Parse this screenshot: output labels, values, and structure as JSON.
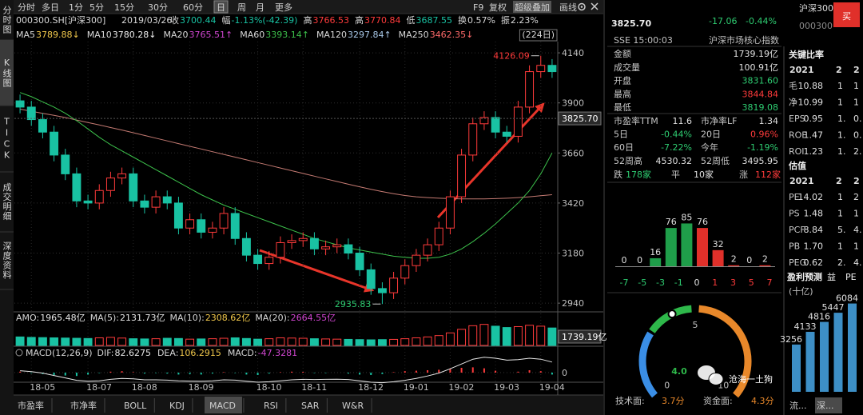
{
  "sidebar": [
    "分时图",
    "K线图",
    "TICK",
    "成交明细",
    "深度资料"
  ],
  "active_sidebar": 1,
  "periods": [
    "分时",
    "多日",
    "1分",
    "5分",
    "15分",
    "30分",
    "60分",
    "日",
    "周",
    "月",
    "更多"
  ],
  "active_period": 7,
  "tools": [
    "F9",
    "复权",
    "超级叠加",
    "画线"
  ],
  "active_tool": 2,
  "quote": {
    "code": "000300.SH[沪深300]",
    "date": "2019/03/26",
    "items": [
      {
        "label": "收",
        "value": "3700.44",
        "color": "#19c2a3"
      },
      {
        "label": "幅",
        "value": "-1.13%(-42.39)",
        "color": "#19c2a3"
      },
      {
        "label": "高",
        "value": "3766.53",
        "color": "#ff3b3b"
      },
      {
        "label": "高",
        "value": "3770.84",
        "color": "#ff3b3b"
      },
      {
        "label": "低",
        "value": "3687.55",
        "color": "#19c2a3"
      },
      {
        "label": "换",
        "value": "0.57%",
        "color": "#d8d8d8"
      },
      {
        "label": "振",
        "value": "2.23%",
        "color": "#d8d8d8"
      }
    ]
  },
  "ma_legend": [
    {
      "label": "MA5",
      "value": "3789.88↓",
      "color": "#f2c94c"
    },
    {
      "label": "MA10",
      "value": "3780.28↓",
      "color": "#f0f0f0"
    },
    {
      "label": "MA20",
      "value": "3765.51↑",
      "color": "#d046d0"
    },
    {
      "label": "MA60",
      "value": "3393.14↑",
      "color": "#3cc04b"
    },
    {
      "label": "MA120",
      "value": "3297.84↑",
      "color": "#a8c8e8"
    },
    {
      "label": "MA250",
      "value": "3462.35↓",
      "color": "#ff6a6a"
    }
  ],
  "period_count": "(224日)",
  "price_chart": {
    "type": "candlestick",
    "categories": [
      null,
      "18-05",
      null,
      null,
      null,
      null,
      "18-07",
      null,
      null,
      null,
      "18-08",
      null,
      null,
      null,
      null,
      "18-09",
      null,
      null,
      null,
      null,
      null,
      "18-10",
      null,
      null,
      null,
      "18-11",
      null,
      null,
      null,
      null,
      "18-12",
      null,
      null,
      null,
      "19-01",
      null,
      null,
      null,
      "19-02",
      null,
      null,
      null,
      "19-03",
      null,
      null,
      null,
      "19-04",
      null
    ],
    "open": [
      3910,
      3880,
      3820,
      3760,
      3650,
      3560,
      3430,
      3420,
      3480,
      3540,
      3560,
      3430,
      3400,
      3450,
      3420,
      3300,
      3340,
      3280,
      3300,
      3370,
      3250,
      3170,
      3130,
      3160,
      3230,
      3240,
      3250,
      3200,
      3210,
      3220,
      3180,
      3100,
      3010,
      2990,
      3060,
      3120,
      3170,
      3220,
      3300,
      3450,
      3650,
      3800,
      3830,
      3760,
      3740,
      3880,
      4050,
      4080
    ],
    "high": [
      3940,
      3910,
      3850,
      3790,
      3680,
      3590,
      3460,
      3510,
      3570,
      3590,
      3590,
      3460,
      3480,
      3480,
      3450,
      3370,
      3370,
      3330,
      3400,
      3400,
      3280,
      3200,
      3190,
      3260,
      3270,
      3280,
      3280,
      3240,
      3250,
      3250,
      3210,
      3130,
      3040,
      3090,
      3150,
      3200,
      3250,
      3330,
      3480,
      3680,
      3830,
      3860,
      3860,
      3790,
      3910,
      4080,
      4126.09,
      4110
    ],
    "low": [
      3850,
      3790,
      3730,
      3620,
      3530,
      3400,
      3390,
      3390,
      3450,
      3510,
      3400,
      3370,
      3370,
      3390,
      3270,
      3270,
      3250,
      3250,
      3270,
      3220,
      3140,
      3100,
      3100,
      3130,
      3200,
      3210,
      3170,
      3170,
      3180,
      3150,
      3070,
      2980,
      2935.83,
      2960,
      3030,
      3090,
      3140,
      3190,
      3270,
      3420,
      3620,
      3770,
      3730,
      3710,
      3710,
      3850,
      4020,
      4020
    ],
    "close": [
      3880,
      3820,
      3760,
      3650,
      3560,
      3430,
      3420,
      3480,
      3540,
      3560,
      3430,
      3400,
      3450,
      3420,
      3300,
      3340,
      3280,
      3300,
      3370,
      3250,
      3170,
      3130,
      3160,
      3230,
      3240,
      3250,
      3200,
      3210,
      3220,
      3180,
      3100,
      3010,
      2990,
      3060,
      3120,
      3170,
      3220,
      3300,
      3450,
      3650,
      3800,
      3830,
      3760,
      3740,
      3880,
      4050,
      4080,
      4050
    ],
    "up_color": "#ff3b3b",
    "down_color": "#19c2a3",
    "lines": [
      {
        "color": "#c47a72",
        "values": [
          3870,
          3860,
          3850,
          3840,
          3830,
          3818,
          3806,
          3794,
          3782,
          3770,
          3757,
          3744,
          3731,
          3718,
          3705,
          3692,
          3679,
          3666,
          3653,
          3640,
          3627,
          3614,
          3601,
          3588,
          3575,
          3562,
          3549,
          3536,
          3523,
          3510,
          3498,
          3486,
          3475,
          3465,
          3456,
          3450,
          3446,
          3443,
          3441,
          3440,
          3440,
          3440,
          3441,
          3443,
          3446,
          3450,
          3455,
          3460
        ]
      },
      {
        "color": "#3cc04b",
        "values": [
          3950,
          3930,
          3905,
          3880,
          3850,
          3815,
          3775,
          3735,
          3700,
          3670,
          3640,
          3610,
          3580,
          3550,
          3520,
          3490,
          3460,
          3435,
          3410,
          3390,
          3370,
          3350,
          3330,
          3310,
          3290,
          3270,
          3250,
          3235,
          3220,
          3205,
          3195,
          3185,
          3175,
          3165,
          3160,
          3155,
          3155,
          3160,
          3175,
          3200,
          3235,
          3275,
          3320,
          3370,
          3420,
          3480,
          3560,
          3660
        ]
      }
    ],
    "ylim": [
      2906,
      4194
    ],
    "yticks": [
      2940,
      3180,
      3420,
      3660,
      3900,
      4140
    ],
    "grid": true,
    "high_label": "4126.09",
    "low_label": "2935.83",
    "last": {
      "value": 3825.7,
      "label": "3825.70"
    }
  },
  "volume": {
    "type": "bar",
    "legend": [
      {
        "label": "AMO:",
        "value": "1965.48亿",
        "color": "#e8e8e8"
      },
      {
        "label": "MA(5):",
        "value": "2131.73亿",
        "color": "#e8e8e8"
      },
      {
        "label": "MA(10):",
        "value": "2308.62亿",
        "color": "#f2c94c"
      },
      {
        "label": "MA(20):",
        "value": "2664.55亿",
        "color": "#d046d0"
      }
    ],
    "values": [
      1900,
      1800,
      1750,
      1700,
      1650,
      1600,
      1550,
      1700,
      1800,
      1650,
      1500,
      1450,
      1500,
      1600,
      1550,
      1400,
      1450,
      1500,
      1600,
      1700,
      1550,
      1400,
      1500,
      1700,
      1650,
      1600,
      1500,
      1450,
      1400,
      1350,
      1300,
      1250,
      1300,
      1350,
      1500,
      1700,
      1900,
      2200,
      2800,
      3600,
      4400,
      4700,
      4300,
      4000,
      4200,
      4500,
      4300,
      3900
    ],
    "ylim": [
      0,
      5000
    ],
    "current": "1739.19亿"
  },
  "macd": {
    "type": "bar",
    "title": "MACD(12,26,9)",
    "legend": [
      {
        "label": "DIF:",
        "value": "82.6275",
        "color": "#e8e8e8"
      },
      {
        "label": "DEA:",
        "value": "106.2915",
        "color": "#f2c94c"
      },
      {
        "label": "MACD:",
        "value": "-47.3281",
        "color": "#d046d0"
      }
    ],
    "values": [
      10,
      -5,
      -15,
      -25,
      -30,
      -35,
      -20,
      -5,
      10,
      15,
      5,
      -10,
      -5,
      -10,
      -20,
      -15,
      -20,
      -10,
      5,
      -5,
      -20,
      -25,
      -10,
      5,
      10,
      8,
      -5,
      -5,
      0,
      -10,
      -20,
      -25,
      -15,
      5,
      15,
      20,
      25,
      30,
      40,
      50,
      55,
      45,
      20,
      0,
      10,
      25,
      15,
      -20
    ],
    "dif": [
      20,
      10,
      -5,
      -30,
      -55,
      -80,
      -90,
      -85,
      -70,
      -60,
      -65,
      -75,
      -75,
      -78,
      -85,
      -88,
      -90,
      -85,
      -75,
      -78,
      -90,
      -100,
      -95,
      -85,
      -75,
      -70,
      -72,
      -70,
      -68,
      -72,
      -85,
      -100,
      -105,
      -95,
      -80,
      -60,
      -35,
      -5,
      40,
      90,
      140,
      160,
      150,
      130,
      135,
      150,
      140,
      110
    ],
    "ylim": [
      -100,
      150
    ],
    "yticks": [
      0
    ]
  },
  "bottom_tabs": [
    "市盈率",
    "市净率",
    "BOLL",
    "KDJ",
    "MACD",
    "RSI",
    "SAR",
    "W&R"
  ],
  "active_tab": 4,
  "panel": {
    "name": "沪深300",
    "code": "000300",
    "buy": "买",
    "price": "3825.70",
    "change": "-17.06",
    "change_pct": "-0.44%",
    "time": "SSE 15:00:03",
    "desc": "沪深市场核心指数",
    "stats": [
      {
        "label": "金额",
        "value": "1739.19亿",
        "color": "#e0e0e0"
      },
      {
        "label": "成交量",
        "value": "100.91亿",
        "color": "#e0e0e0"
      },
      {
        "label": "开盘",
        "value": "3831.60",
        "color": "#2ecc71"
      },
      {
        "label": "最高",
        "value": "3844.84",
        "color": "#ff3b3b"
      },
      {
        "label": "最低",
        "value": "3819.08",
        "color": "#2ecc71"
      }
    ],
    "metrics": [
      [
        {
          "label": "市盈率TTM",
          "value": "11.6",
          "color": "#e0e0e0"
        },
        {
          "label": "市净率LF",
          "value": "1.34",
          "color": "#e0e0e0"
        }
      ],
      [
        {
          "label": "5日",
          "value": "-0.44%",
          "color": "#2ecc71"
        },
        {
          "label": "20日",
          "value": "0.96%",
          "color": "#ff3b3b"
        }
      ],
      [
        {
          "label": "60日",
          "value": "-7.22%",
          "color": "#2ecc71"
        },
        {
          "label": "今年",
          "value": "-1.19%",
          "color": "#2ecc71"
        }
      ],
      [
        {
          "label": "52周高",
          "value": "4530.32",
          "color": "#e0e0e0"
        },
        {
          "label": "52周低",
          "value": "3495.95",
          "color": "#e0e0e0"
        }
      ]
    ],
    "breadth": [
      {
        "label": "跌",
        "value": "178家",
        "color": "#2ecc71"
      },
      {
        "label": "平",
        "value": "10家",
        "color": "#e0e0e0"
      },
      {
        "label": "涨",
        "value": "112家",
        "color": "#ff3b3b"
      }
    ],
    "distribution": {
      "type": "bar",
      "values": [
        0,
        0,
        16,
        76,
        85,
        76,
        32,
        2,
        0,
        2
      ],
      "colors": [
        "#1f9e4a",
        "#1f9e4a",
        "#1f9e4a",
        "#1f9e4a",
        "#1f9e4a",
        "#e0302a",
        "#e0302a",
        "#e0302a",
        "#e0302a",
        "#e0302a"
      ],
      "ylim": [
        0,
        100
      ],
      "axis_labels": [
        "-7",
        "-5",
        "-3",
        "-1",
        "0",
        "1",
        "3",
        "5",
        "7"
      ]
    },
    "gauge": {
      "type": "gauge",
      "value": 4,
      "value_label": "4.0",
      "xlim": [
        0,
        10
      ],
      "xticks": [
        0,
        5,
        10
      ]
    },
    "scores": [
      {
        "label": "技术面:",
        "value": "3.7分"
      },
      {
        "label": "资金面:",
        "value": "4.3分"
      }
    ],
    "watermark": "沧海一土狗"
  },
  "ratios": {
    "title": "关键比率",
    "years": [
      "2021",
      "2",
      "2"
    ],
    "rows": [
      [
        "毛",
        "10.88",
        "1",
        "1"
      ],
      [
        "净",
        "10.99",
        "1",
        "1"
      ],
      [
        "EPS",
        "0.95",
        "1.",
        "0."
      ],
      [
        "ROE",
        "1.47",
        "1.",
        "0."
      ],
      [
        "ROI",
        "1.23",
        "1.",
        "2."
      ]
    ]
  },
  "valuation": {
    "title": "估值",
    "years": [
      "2021",
      "2",
      "2"
    ],
    "rows": [
      [
        "PE",
        "14.02",
        "1",
        "2"
      ],
      [
        "PS",
        "1.48",
        "1",
        "1"
      ],
      [
        "PCF",
        "8.84",
        "5.",
        "4."
      ],
      [
        "PB",
        "1.70",
        "1",
        "1"
      ],
      [
        "PEG",
        "0.62",
        "2.",
        "4."
      ]
    ]
  },
  "forecast": {
    "type": "bar",
    "title": "盈利预测",
    "cols": [
      "益",
      "PE"
    ],
    "unit": "(十亿)",
    "values": [
      3256,
      4133,
      4816,
      5447,
      6084
    ],
    "ylim": [
      0,
      6500
    ],
    "color": "#3d8fc6"
  },
  "side_tabs": [
    "流...",
    "深..."
  ]
}
